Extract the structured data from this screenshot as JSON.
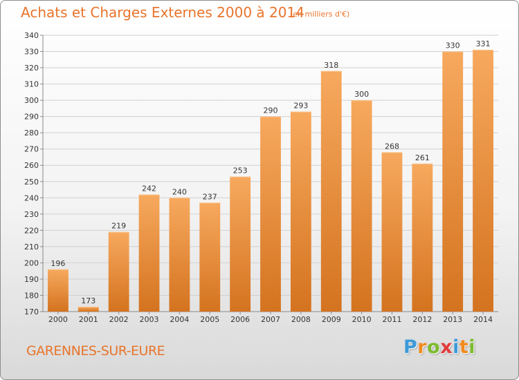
{
  "header": {
    "title": "Achats et Charges Externes 2000 à 2014",
    "unit": "(en milliers d'€)"
  },
  "footer": {
    "commune": "GARENNES-SUR-EURE",
    "logo_letters": [
      {
        "char": "P",
        "color": "#3b9ad9"
      },
      {
        "char": "r",
        "color": "#f18a1c"
      },
      {
        "char": "o",
        "color": "#7dbb2e"
      },
      {
        "char": "x",
        "color": "#e23b3b"
      },
      {
        "char": "i",
        "color": "#3b9ad9"
      },
      {
        "char": "t",
        "color": "#f18a1c"
      },
      {
        "char": "i",
        "color": "#7dbb2e"
      }
    ]
  },
  "colors": {
    "accent": "#e8742a",
    "bar_light": "#f6a55a",
    "bar_dark": "#d4731f",
    "grid": "#d0d0d0"
  },
  "chart_data": {
    "type": "bar",
    "categories": [
      "2000",
      "2001",
      "2002",
      "2003",
      "2004",
      "2005",
      "2006",
      "2007",
      "2008",
      "2009",
      "2010",
      "2011",
      "2012",
      "2013",
      "2014"
    ],
    "values": [
      196,
      173,
      219,
      242,
      240,
      237,
      253,
      290,
      293,
      318,
      300,
      268,
      261,
      330,
      331
    ],
    "ylim": [
      170,
      340
    ],
    "yticks": [
      170,
      180,
      190,
      200,
      210,
      220,
      230,
      240,
      250,
      260,
      270,
      280,
      290,
      300,
      310,
      320,
      330,
      340
    ],
    "grid": true,
    "data_labels": true
  }
}
